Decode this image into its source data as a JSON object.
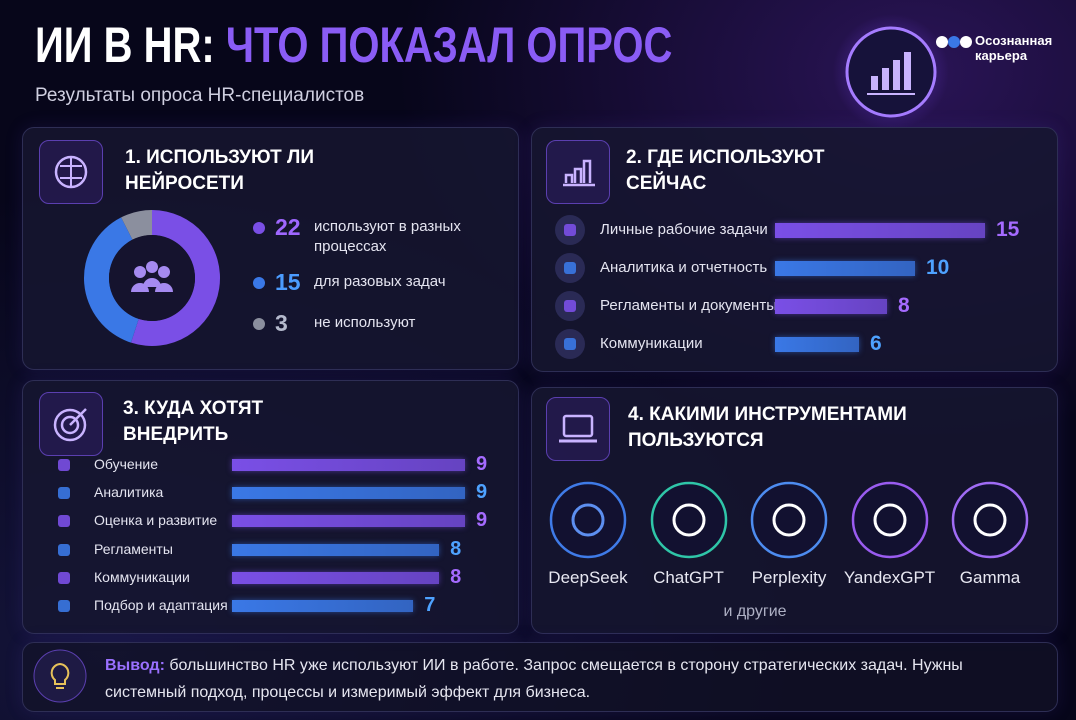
{
  "header": {
    "title_part1": "ИИ В HR:",
    "title_part2": "ЧТО ПОКАЗАЛ ОПРОС",
    "subtitle": "Результаты опроса HR-специалистов"
  },
  "logo": {
    "lines": [
      "Осознанная",
      "карьера"
    ]
  },
  "chart_data": [
    {
      "type": "pie",
      "title": "1. ИСПОЛЬЗУЮТ ЛИ НЕЙРОСЕТИ",
      "categories": [
        "используют в разных процессах",
        "для разовых задач",
        "не используют"
      ],
      "values": [
        22,
        15,
        3
      ],
      "colors": [
        "#7a4fe6",
        "#3a78e6",
        "#8b8f9e"
      ]
    },
    {
      "type": "bar",
      "title": "2. ГДЕ ИСПОЛЬЗУЮТ СЕЙЧАС",
      "categories": [
        "Личные рабочие задачи",
        "Аналитика и отчетность",
        "Регламенты и документы",
        "Коммуникации"
      ],
      "values": [
        15,
        10,
        8,
        6
      ],
      "colors": [
        "#7a4fe6",
        "#3a78e6",
        "#7a4fe6",
        "#3a78e6"
      ]
    },
    {
      "type": "bar",
      "title": "3. КУДА ХОТЯТ ВНЕДРИТЬ",
      "categories": [
        "Обучение",
        "Аналитика",
        "Оценка и развитие",
        "Регламенты",
        "Коммуникации",
        "Подбор и адаптация"
      ],
      "values": [
        9,
        9,
        9,
        8,
        8,
        7
      ],
      "colors": [
        "#7a4fe6",
        "#3a78e6",
        "#7a4fe6",
        "#3a78e6",
        "#7a4fe6",
        "#3a78e6"
      ]
    }
  ],
  "tools": {
    "title": "4. КАКИМИ ИНСТРУМЕНТАМИ ПОЛЬЗУЮТСЯ",
    "items": [
      "DeepSeek",
      "ChatGPT",
      "Perplexity",
      "YandexGPT",
      "Gamma"
    ],
    "other": "и другие"
  },
  "conclusion": {
    "label": "Вывод:",
    "text": "большинство HR уже используют ИИ в работе. Запрос смещается в сторону стратегических задач. Нужны системный подход, процессы и измеримый эффект для бизнеса."
  }
}
